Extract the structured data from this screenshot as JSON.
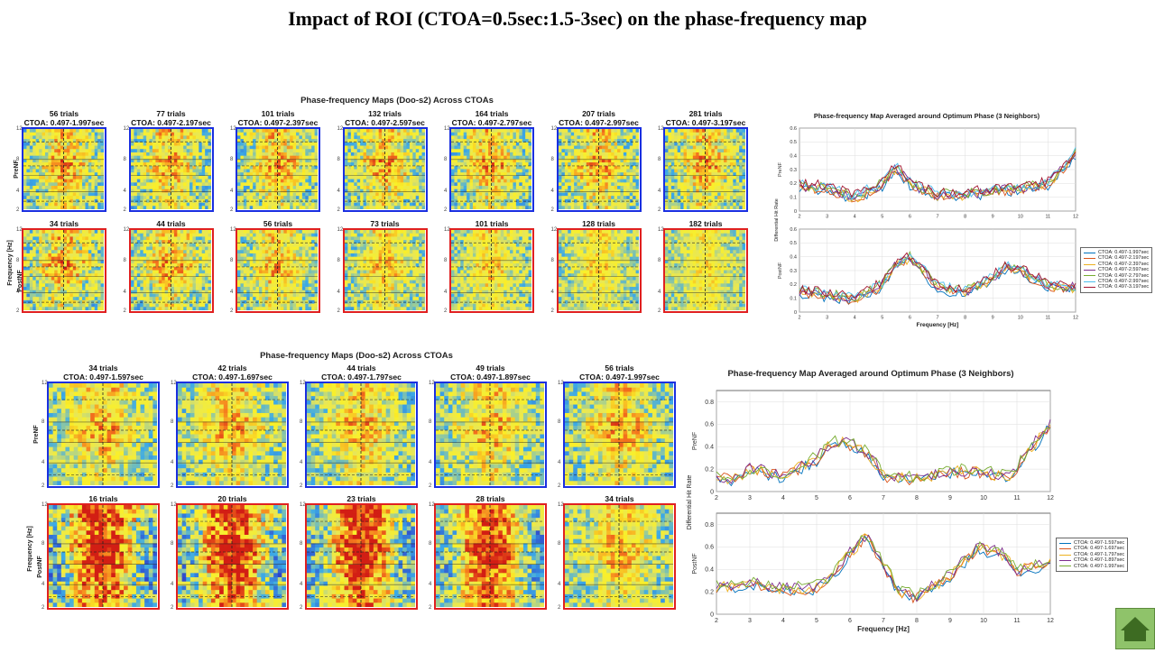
{
  "slide_title": "Impact of ROI (CTOA=0.5sec:1.5-3sec) on the phase-frequency map",
  "top": {
    "group_title": "Phase-frequency Maps (Doo-s2) Across CTOAs",
    "row_labels": {
      "pre": "PreNF",
      "post": "PostNF",
      "freq": "Frequency [Hz]"
    },
    "pre": [
      {
        "trials": "56 trials",
        "ctoa": "CTOA: 0.497-1.997sec"
      },
      {
        "trials": "77 trials",
        "ctoa": "CTOA: 0.497-2.197sec"
      },
      {
        "trials": "101 trials",
        "ctoa": "CTOA: 0.497-2.397sec"
      },
      {
        "trials": "132 trials",
        "ctoa": "CTOA: 0.497-2.597sec"
      },
      {
        "trials": "164 trials",
        "ctoa": "CTOA: 0.497-2.797sec"
      },
      {
        "trials": "207 trials",
        "ctoa": "CTOA: 0.497-2.997sec"
      },
      {
        "trials": "281 trials",
        "ctoa": "CTOA: 0.497-3.197sec"
      }
    ],
    "post": [
      {
        "trials": "34 trials"
      },
      {
        "trials": "44 trials"
      },
      {
        "trials": "56 trials"
      },
      {
        "trials": "73 trials"
      },
      {
        "trials": "101 trials"
      },
      {
        "trials": "128 trials"
      },
      {
        "trials": "182 trials"
      }
    ],
    "y_ticks": [
      "12",
      "8",
      "4",
      "2"
    ]
  },
  "bottom": {
    "group_title": "Phase-frequency Maps (Doo-s2) Across CTOAs",
    "row_labels": {
      "pre": "PreNF",
      "post": "PostNF",
      "freq": "Frequency [Hz]"
    },
    "pre": [
      {
        "trials": "34 trials",
        "ctoa": "CTOA: 0.497-1.597sec"
      },
      {
        "trials": "42 trials",
        "ctoa": "CTOA: 0.497-1.697sec"
      },
      {
        "trials": "44 trials",
        "ctoa": "CTOA: 0.497-1.797sec"
      },
      {
        "trials": "49 trials",
        "ctoa": "CTOA: 0.497-1.897sec"
      },
      {
        "trials": "56 trials",
        "ctoa": "CTOA: 0.497-1.997sec"
      }
    ],
    "post": [
      {
        "trials": "16 trials"
      },
      {
        "trials": "20 trials"
      },
      {
        "trials": "23 trials"
      },
      {
        "trials": "28 trials"
      },
      {
        "trials": "34 trials"
      }
    ],
    "y_ticks": [
      "12",
      "8",
      "4",
      "2"
    ]
  },
  "colors": {
    "pre_frame": "#1a2fe0",
    "post_frame": "#e02020",
    "home": "#8fc36a"
  },
  "chart_data": [
    {
      "type": "line",
      "title": "Phase-frequency Map Averaged around Optimum Phase (3 Neighbors)",
      "panel_labels": [
        "PreNF",
        "PostNF"
      ],
      "xlabel": "Frequency [Hz]",
      "ylabel": "Differential Hit Rate",
      "xlim": [
        2,
        12
      ],
      "ylim": [
        0,
        0.6
      ],
      "x_ticks": [
        "2",
        "3",
        "4",
        "5",
        "6",
        "7",
        "8",
        "9",
        "10",
        "11",
        "12"
      ],
      "y_ticks": [
        "0",
        "0.1",
        "0.2",
        "0.3",
        "0.4",
        "0.5",
        "0.6"
      ],
      "legend_position": "right",
      "series": [
        {
          "name": "CTOA: 0.497-1.997sec",
          "color": "#0072bd"
        },
        {
          "name": "CTOA: 0.497-2.197sec",
          "color": "#d95319"
        },
        {
          "name": "CTOA: 0.497-2.397sec",
          "color": "#edb120"
        },
        {
          "name": "CTOA: 0.497-2.597sec",
          "color": "#7e2f8e"
        },
        {
          "name": "CTOA: 0.497-2.797sec",
          "color": "#77ac30"
        },
        {
          "name": "CTOA: 0.497-2.997sec",
          "color": "#4dbeee"
        },
        {
          "name": "CTOA: 0.497-3.197sec",
          "color": "#a2142f"
        }
      ],
      "pre_anchor_x": [
        2,
        3,
        4,
        5,
        5.5,
        6,
        7,
        8,
        9,
        10,
        11,
        11.5,
        12
      ],
      "pre_anchor_y": [
        0.18,
        0.17,
        0.1,
        0.2,
        0.32,
        0.2,
        0.12,
        0.12,
        0.15,
        0.17,
        0.2,
        0.3,
        0.42
      ],
      "post_anchor_x": [
        2,
        3,
        4,
        5,
        5.5,
        6,
        6.5,
        7,
        8,
        9,
        9.5,
        10,
        11,
        12
      ],
      "post_anchor_y": [
        0.15,
        0.13,
        0.1,
        0.2,
        0.35,
        0.4,
        0.3,
        0.18,
        0.15,
        0.25,
        0.33,
        0.3,
        0.2,
        0.18
      ]
    },
    {
      "type": "line",
      "title": "Phase-frequency Map Averaged around Optimum Phase (3 Neighbors)",
      "panel_labels": [
        "PreNF",
        "PostNF"
      ],
      "xlabel": "Frequency [Hz]",
      "ylabel": "Differential Hit Rate",
      "xlim": [
        2,
        12
      ],
      "ylim": [
        0,
        0.9
      ],
      "x_ticks": [
        "2",
        "3",
        "4",
        "5",
        "6",
        "7",
        "8",
        "9",
        "10",
        "11",
        "12"
      ],
      "y_ticks": [
        "0",
        "0.2",
        "0.4",
        "0.6",
        "0.8"
      ],
      "legend_position": "right",
      "series": [
        {
          "name": "CTOA: 0.497-1.597sec",
          "color": "#0072bd"
        },
        {
          "name": "CTOA: 0.497-1.697sec",
          "color": "#d95319"
        },
        {
          "name": "CTOA: 0.497-1.797sec",
          "color": "#edb120"
        },
        {
          "name": "CTOA: 0.497-1.897sec",
          "color": "#7e2f8e"
        },
        {
          "name": "CTOA: 0.497-1.997sec",
          "color": "#77ac30"
        }
      ],
      "pre_anchor_x": [
        2,
        2.5,
        3,
        4,
        5,
        5.5,
        6,
        6.5,
        7,
        8,
        9,
        10,
        10.8,
        11.3,
        12
      ],
      "pre_anchor_y": [
        0.15,
        0.1,
        0.2,
        0.15,
        0.3,
        0.45,
        0.43,
        0.35,
        0.15,
        0.12,
        0.18,
        0.18,
        0.12,
        0.35,
        0.6
      ],
      "post_anchor_x": [
        2,
        3,
        4,
        5,
        5.5,
        6,
        6.5,
        7,
        7.5,
        8,
        9,
        9.8,
        10.5,
        11,
        12
      ],
      "post_anchor_y": [
        0.25,
        0.28,
        0.22,
        0.25,
        0.35,
        0.55,
        0.7,
        0.45,
        0.2,
        0.15,
        0.35,
        0.6,
        0.55,
        0.4,
        0.45
      ]
    }
  ]
}
